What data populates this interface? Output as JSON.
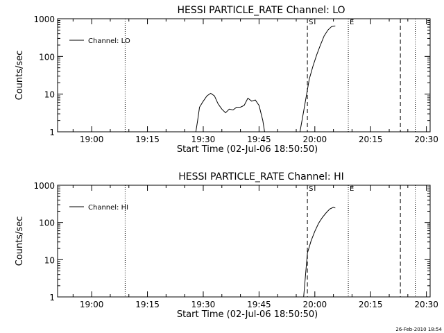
{
  "footer": {
    "timestamp": "26-Feb-2010 18:54"
  },
  "chart_data": [
    {
      "type": "line",
      "title": "HESSI PARTICLE_RATE Channel: LO",
      "xlabel": "Start Time (02-Jul-06 18:50:50)",
      "ylabel": "Counts/sec",
      "yscale": "log",
      "xlim": [
        "18:50:50",
        "20:31:00"
      ],
      "ylim": [
        1,
        1000
      ],
      "x_ticks": [
        "19:00",
        "19:15",
        "19:30",
        "19:45",
        "20:00",
        "20:15",
        "20:30"
      ],
      "y_ticks": [
        "1",
        "10",
        "100",
        "1000"
      ],
      "legend": {
        "placement": "top-left",
        "entries": [
          "Channel: LO"
        ]
      },
      "markers": [
        {
          "time": "19:09:00",
          "style": "dotted",
          "label": ""
        },
        {
          "time": "19:58:00",
          "style": "dashed",
          "label": "S"
        },
        {
          "time": "20:09:00",
          "style": "dotted",
          "label": "E"
        },
        {
          "time": "20:23:00",
          "style": "dashed",
          "label": ""
        },
        {
          "time": "20:27:00",
          "style": "dotted",
          "label": ""
        }
      ],
      "series": [
        {
          "name": "Channel: LO",
          "x": [
            "19:28:00",
            "19:28:30",
            "19:29:00",
            "19:30:00",
            "19:31:00",
            "19:32:00",
            "19:33:00",
            "19:34:00",
            "19:35:00",
            "19:36:00",
            "19:37:00",
            "19:38:00",
            "19:39:00",
            "19:40:00",
            "19:41:00",
            "19:42:00",
            "19:43:00",
            "19:44:00",
            "19:45:00",
            "19:46:00",
            "19:46:30",
            "19:56:00",
            "19:57:00",
            "19:58:30",
            "19:59:30",
            "20:00:30",
            "20:01:30",
            "20:02:30",
            "20:03:30",
            "20:04:30",
            "20:05:30"
          ],
          "y": [
            1,
            2,
            4.5,
            6.5,
            9,
            10.5,
            9,
            5.5,
            4,
            3.2,
            4,
            3.8,
            4.5,
            4.5,
            5,
            7.8,
            6.5,
            7,
            5,
            2,
            1,
            1,
            3.5,
            25,
            55,
            110,
            200,
            350,
            500,
            620,
            640
          ]
        }
      ]
    },
    {
      "type": "line",
      "title": "HESSI PARTICLE_RATE Channel: HI",
      "xlabel": "Start Time (02-Jul-06 18:50:50)",
      "ylabel": "Counts/sec",
      "yscale": "log",
      "xlim": [
        "18:50:50",
        "20:31:00"
      ],
      "ylim": [
        1,
        1000
      ],
      "x_ticks": [
        "19:00",
        "19:15",
        "19:30",
        "19:45",
        "20:00",
        "20:15",
        "20:30"
      ],
      "y_ticks": [
        "1",
        "10",
        "100",
        "1000"
      ],
      "legend": {
        "placement": "top-left",
        "entries": [
          "Channel: HI"
        ]
      },
      "markers": [
        {
          "time": "19:09:00",
          "style": "dotted",
          "label": ""
        },
        {
          "time": "19:58:00",
          "style": "dashed",
          "label": "S"
        },
        {
          "time": "20:09:00",
          "style": "dotted",
          "label": "E"
        },
        {
          "time": "20:23:00",
          "style": "dashed",
          "label": ""
        },
        {
          "time": "20:27:00",
          "style": "dotted",
          "label": ""
        }
      ],
      "series": [
        {
          "name": "Channel: HI",
          "x": [
            "19:57:00",
            "19:58:00",
            "19:59:00",
            "20:00:00",
            "20:01:00",
            "20:02:00",
            "20:03:00",
            "20:04:00",
            "20:05:00",
            "20:05:30"
          ],
          "y": [
            1,
            15,
            32,
            58,
            95,
            135,
            180,
            230,
            255,
            245
          ]
        }
      ]
    }
  ]
}
